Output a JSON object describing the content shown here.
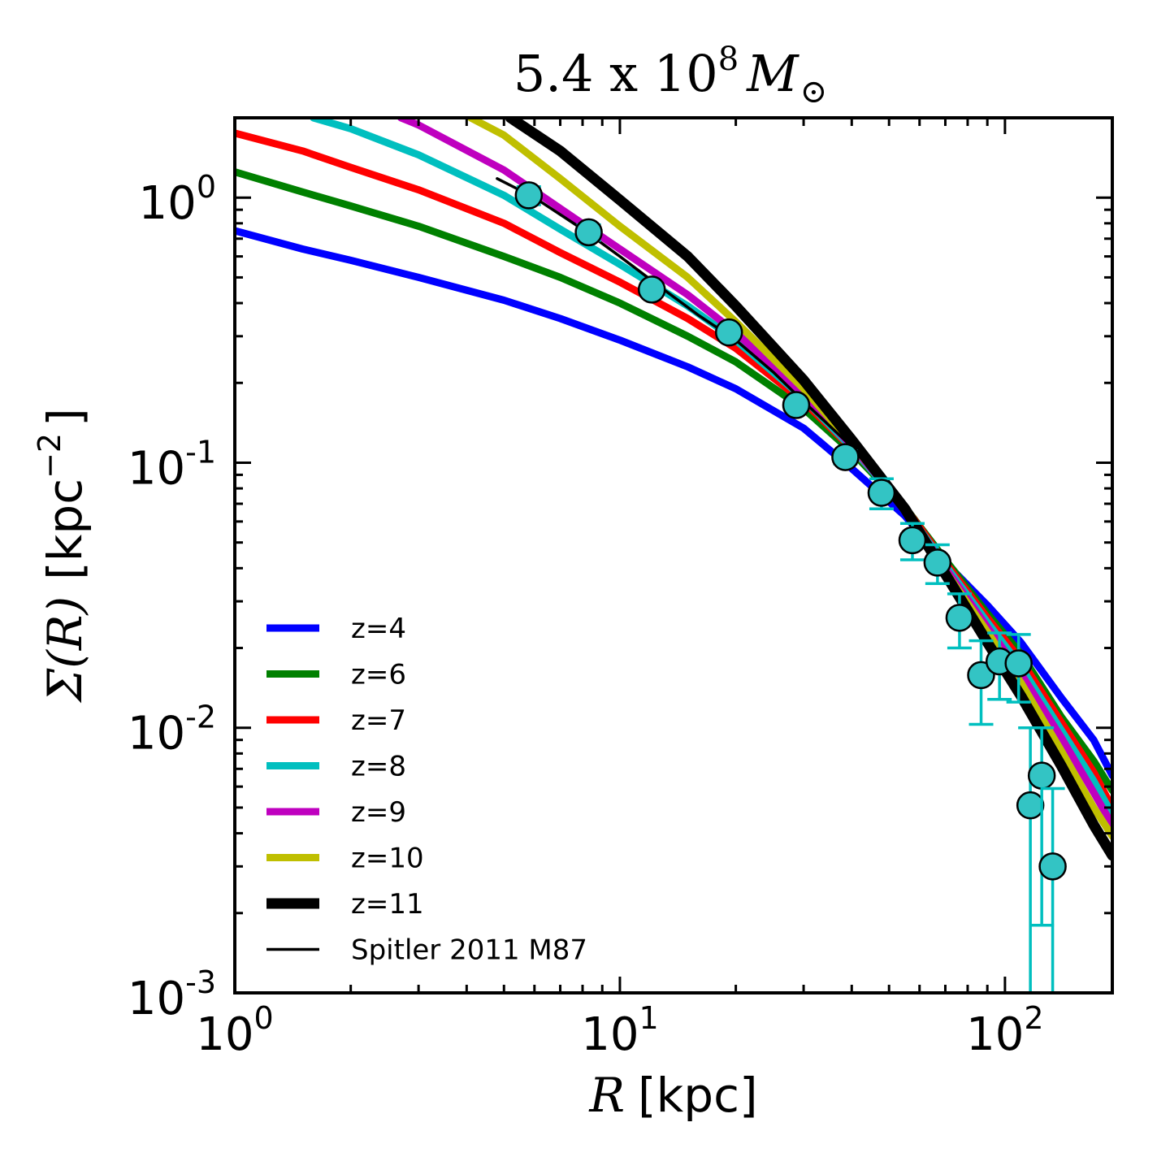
{
  "chart_data": {
    "type": "line",
    "title": {
      "prefix": "5.4 x 10",
      "exponent": "8",
      "symbol": "M",
      "subscript": "⊙"
    },
    "xlabel": {
      "symbol": "R",
      "unit": "[kpc]"
    },
    "ylabel": {
      "symbol": "Σ(R)",
      "unit_open": "[kpc",
      "unit_exponent": "−2",
      "unit_close": "]"
    },
    "x_scale": "log",
    "y_scale": "log",
    "xlim": [
      1,
      190
    ],
    "ylim": [
      0.001,
      2.0
    ],
    "x_ticks": [
      {
        "value": 1,
        "base": "10",
        "exp": "0"
      },
      {
        "value": 10,
        "base": "10",
        "exp": "1"
      },
      {
        "value": 100,
        "base": "10",
        "exp": "2"
      }
    ],
    "y_ticks": [
      {
        "value": 1,
        "base": "10",
        "exp": "0"
      },
      {
        "value": 0.1,
        "base": "10",
        "exp": "-1"
      },
      {
        "value": 0.01,
        "base": "10",
        "exp": "-2"
      },
      {
        "value": 0.001,
        "base": "10",
        "exp": "-3"
      }
    ],
    "grid": false,
    "legend_position": "lower-left",
    "series": [
      {
        "name": "z=4",
        "color": "#0000ff",
        "points": [
          [
            1,
            0.75
          ],
          [
            1.5,
            0.64
          ],
          [
            2,
            0.58
          ],
          [
            3,
            0.5
          ],
          [
            5,
            0.41
          ],
          [
            7,
            0.35
          ],
          [
            10,
            0.29
          ],
          [
            15,
            0.23
          ],
          [
            20,
            0.19
          ],
          [
            30,
            0.135
          ],
          [
            40,
            0.095
          ],
          [
            55,
            0.063
          ],
          [
            70,
            0.042
          ],
          [
            90,
            0.029
          ],
          [
            110,
            0.021
          ],
          [
            140,
            0.013
          ],
          [
            170,
            0.009
          ],
          [
            190,
            0.0066
          ]
        ]
      },
      {
        "name": "z=6",
        "color": "#008000",
        "points": [
          [
            1,
            1.25
          ],
          [
            1.5,
            1.05
          ],
          [
            2,
            0.93
          ],
          [
            3,
            0.78
          ],
          [
            5,
            0.6
          ],
          [
            7,
            0.5
          ],
          [
            10,
            0.4
          ],
          [
            15,
            0.3
          ],
          [
            20,
            0.24
          ],
          [
            30,
            0.16
          ],
          [
            40,
            0.11
          ],
          [
            55,
            0.068
          ],
          [
            70,
            0.043
          ],
          [
            90,
            0.027
          ],
          [
            110,
            0.019
          ],
          [
            140,
            0.011
          ],
          [
            170,
            0.0075
          ],
          [
            190,
            0.0058
          ]
        ]
      },
      {
        "name": "z=7",
        "color": "#ff0000",
        "points": [
          [
            1,
            1.75
          ],
          [
            1.5,
            1.5
          ],
          [
            2,
            1.3
          ],
          [
            3,
            1.07
          ],
          [
            5,
            0.8
          ],
          [
            7,
            0.62
          ],
          [
            10,
            0.48
          ],
          [
            15,
            0.35
          ],
          [
            20,
            0.27
          ],
          [
            30,
            0.17
          ],
          [
            40,
            0.113
          ],
          [
            55,
            0.068
          ],
          [
            70,
            0.042
          ],
          [
            90,
            0.026
          ],
          [
            110,
            0.018
          ],
          [
            140,
            0.0105
          ],
          [
            170,
            0.0068
          ],
          [
            190,
            0.005
          ]
        ]
      },
      {
        "name": "z=8",
        "color": "#00bfbf",
        "points": [
          [
            1.6,
            2.0
          ],
          [
            2,
            1.82
          ],
          [
            3,
            1.45
          ],
          [
            5,
            1.02
          ],
          [
            7,
            0.76
          ],
          [
            10,
            0.56
          ],
          [
            15,
            0.39
          ],
          [
            20,
            0.29
          ],
          [
            30,
            0.175
          ],
          [
            40,
            0.114
          ],
          [
            55,
            0.067
          ],
          [
            70,
            0.041
          ],
          [
            90,
            0.025
          ],
          [
            110,
            0.017
          ],
          [
            140,
            0.0098
          ],
          [
            170,
            0.0063
          ],
          [
            190,
            0.0047
          ]
        ]
      },
      {
        "name": "z=9",
        "color": "#bf00bf",
        "points": [
          [
            2.7,
            2.0
          ],
          [
            3,
            1.88
          ],
          [
            5,
            1.27
          ],
          [
            7,
            0.91
          ],
          [
            10,
            0.64
          ],
          [
            15,
            0.43
          ],
          [
            20,
            0.31
          ],
          [
            30,
            0.18
          ],
          [
            40,
            0.116
          ],
          [
            55,
            0.067
          ],
          [
            70,
            0.04
          ],
          [
            90,
            0.024
          ],
          [
            110,
            0.016
          ],
          [
            140,
            0.0092
          ],
          [
            170,
            0.0057
          ],
          [
            190,
            0.0043
          ]
        ]
      },
      {
        "name": "z=10",
        "color": "#bfbf00",
        "points": [
          [
            4.1,
            2.0
          ],
          [
            5,
            1.72
          ],
          [
            7,
            1.18
          ],
          [
            10,
            0.78
          ],
          [
            15,
            0.5
          ],
          [
            20,
            0.34
          ],
          [
            30,
            0.19
          ],
          [
            40,
            0.118
          ],
          [
            55,
            0.067
          ],
          [
            70,
            0.039
          ],
          [
            90,
            0.023
          ],
          [
            110,
            0.0148
          ],
          [
            140,
            0.0082
          ],
          [
            170,
            0.005
          ],
          [
            190,
            0.0039
          ]
        ]
      },
      {
        "name": "z=11",
        "color": "#000000",
        "points": [
          [
            5.2,
            2.0
          ],
          [
            7,
            1.5
          ],
          [
            10,
            0.98
          ],
          [
            15,
            0.6
          ],
          [
            20,
            0.39
          ],
          [
            30,
            0.205
          ],
          [
            40,
            0.122
          ],
          [
            55,
            0.067
          ],
          [
            70,
            0.038
          ],
          [
            90,
            0.021
          ],
          [
            110,
            0.0132
          ],
          [
            140,
            0.0072
          ],
          [
            170,
            0.0043
          ],
          [
            190,
            0.0033
          ]
        ]
      },
      {
        "name": "Spitler 2011 M87",
        "color": "#000000",
        "points": [
          [
            4.8,
            1.18
          ],
          [
            6,
            1.0
          ],
          [
            8,
            0.76
          ],
          [
            10,
            0.6
          ],
          [
            13,
            0.45
          ],
          [
            16,
            0.36
          ],
          [
            20,
            0.29
          ],
          [
            25,
            0.22
          ],
          [
            30,
            0.17
          ],
          [
            40,
            0.115
          ],
          [
            50,
            0.08
          ],
          [
            60,
            0.055
          ],
          [
            70,
            0.04
          ]
        ]
      }
    ],
    "observed": {
      "color": "#33c4c4",
      "error_color": "#00bfbf",
      "points": [
        {
          "x": 5.8,
          "y": 1.02,
          "err_low": 0.08,
          "err_high": 0.08
        },
        {
          "x": 8.3,
          "y": 0.74,
          "err_low": 0.05,
          "err_high": 0.05
        },
        {
          "x": 12.1,
          "y": 0.45,
          "err_low": 0.02,
          "err_high": 0.02
        },
        {
          "x": 19.2,
          "y": 0.31,
          "err_low": 0.015,
          "err_high": 0.015
        },
        {
          "x": 28.7,
          "y": 0.165,
          "err_low": 0.008,
          "err_high": 0.008
        },
        {
          "x": 38.5,
          "y": 0.105,
          "err_low": 0.006,
          "err_high": 0.006
        },
        {
          "x": 47.8,
          "y": 0.077,
          "err_low": 0.01,
          "err_high": 0.01
        },
        {
          "x": 57.5,
          "y": 0.051,
          "err_low": 0.008,
          "err_high": 0.008
        },
        {
          "x": 66.8,
          "y": 0.042,
          "err_low": 0.007,
          "err_high": 0.007
        },
        {
          "x": 76.2,
          "y": 0.026,
          "err_low": 0.006,
          "err_high": 0.006
        },
        {
          "x": 86.7,
          "y": 0.0158,
          "err_low": 0.0055,
          "err_high": 0.0055
        },
        {
          "x": 96.8,
          "y": 0.0178,
          "err_low": 0.005,
          "err_high": 0.005
        },
        {
          "x": 108.5,
          "y": 0.0175,
          "err_low": 0.005,
          "err_high": 0.005
        },
        {
          "x": 116.4,
          "y": 0.0051,
          "err_low": 0.0049,
          "err_high": 0.0049
        },
        {
          "x": 124.6,
          "y": 0.0066,
          "err_low": 0.0048,
          "err_high": 0.0034
        },
        {
          "x": 133.0,
          "y": 0.003,
          "err_low": 0.0029,
          "err_high": 0.0029
        }
      ]
    }
  }
}
